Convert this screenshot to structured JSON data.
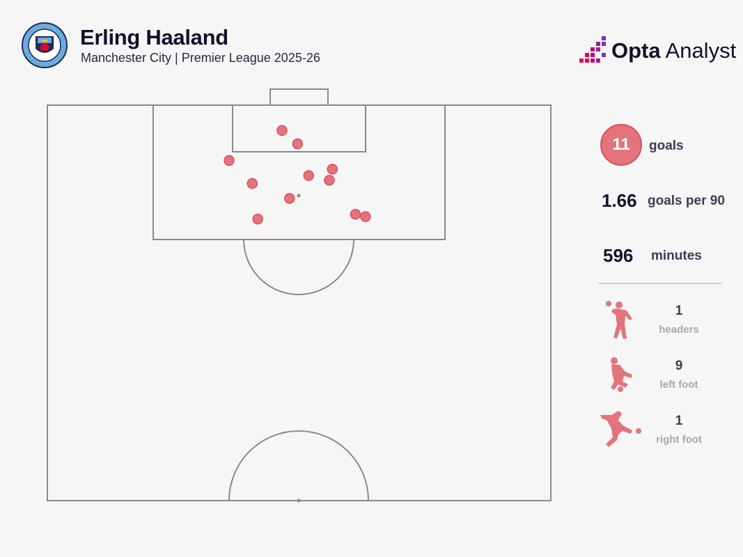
{
  "header": {
    "player_name": "Erling Haaland",
    "subtitle": "Manchester City | Premier League 2025-26",
    "crest_text": "MANCHESTER CITY"
  },
  "brand": {
    "name_bold": "Opta",
    "name_light": " Analyst"
  },
  "colors": {
    "goal_fill": "#e3747c",
    "goal_stroke": "#d8505c",
    "pitch_line": "#8a8a8a",
    "background": "#f6f6f6"
  },
  "stats": {
    "goals_value": "11",
    "goals_label": "goals",
    "per90_value": "1.66",
    "per90_label": "goals per 90",
    "minutes_value": "596",
    "minutes_label": "minutes"
  },
  "goal_types": [
    {
      "icon": "header-silhouette-icon",
      "count": "1",
      "label": "headers"
    },
    {
      "icon": "left-foot-silhouette-icon",
      "count": "9",
      "label": "left foot"
    },
    {
      "icon": "right-foot-silhouette-icon",
      "count": "1",
      "label": "right foot"
    }
  ],
  "chart_data": {
    "type": "scatter",
    "description_units": "pitch percentage: x = across width (0 left touchline, 100 right touchline), y = distance from goal line (0 at goal line, 50 at halfway line)",
    "x_range": [
      0,
      100
    ],
    "y_range": [
      0,
      50
    ],
    "points": [
      {
        "x": 46.6,
        "y": 3.2
      },
      {
        "x": 49.7,
        "y": 4.9
      },
      {
        "x": 36.1,
        "y": 7.0
      },
      {
        "x": 56.6,
        "y": 8.1
      },
      {
        "x": 51.9,
        "y": 8.9
      },
      {
        "x": 56.0,
        "y": 9.5
      },
      {
        "x": 40.7,
        "y": 9.9
      },
      {
        "x": 48.1,
        "y": 11.8
      },
      {
        "x": 61.2,
        "y": 13.8
      },
      {
        "x": 63.2,
        "y": 14.1
      },
      {
        "x": 41.8,
        "y": 14.4
      }
    ]
  }
}
